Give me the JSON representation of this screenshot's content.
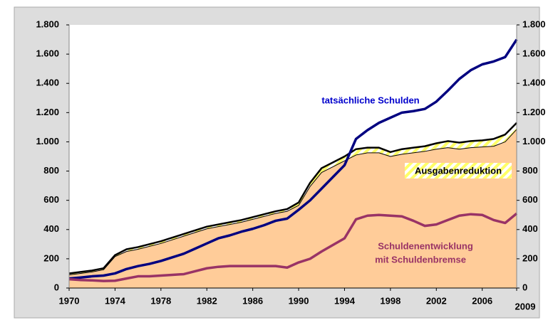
{
  "chart_data": {
    "type": "line",
    "x": [
      1970,
      1971,
      1972,
      1973,
      1974,
      1975,
      1976,
      1977,
      1978,
      1979,
      1980,
      1981,
      1982,
      1983,
      1984,
      1985,
      1986,
      1987,
      1988,
      1989,
      1990,
      1991,
      1992,
      1993,
      1994,
      1995,
      1996,
      1997,
      1998,
      1999,
      2000,
      2001,
      2002,
      2003,
      2004,
      2005,
      2006,
      2007,
      2008,
      2009
    ],
    "series": [
      {
        "color": "#000000",
        "values": [
          100,
          110,
          120,
          135,
          225,
          265,
          280,
          300,
          320,
          345,
          370,
          395,
          420,
          435,
          450,
          465,
          485,
          505,
          525,
          540,
          585,
          720,
          820,
          860,
          900,
          950,
          960,
          960,
          930,
          950,
          960,
          970,
          990,
          1005,
          995,
          1005,
          1010,
          1020,
          1050,
          1130
        ]
      },
      {
        "color": "#000000",
        "values": [
          90,
          100,
          110,
          125,
          215,
          250,
          265,
          285,
          305,
          330,
          355,
          380,
          405,
          420,
          435,
          450,
          470,
          490,
          510,
          525,
          565,
          695,
          790,
          830,
          870,
          910,
          925,
          925,
          900,
          915,
          925,
          935,
          950,
          960,
          950,
          960,
          965,
          970,
          1000,
          1085
        ]
      },
      {
        "color": "#000080",
        "values": [
          65,
          72,
          80,
          85,
          100,
          130,
          150,
          165,
          185,
          210,
          235,
          270,
          305,
          340,
          360,
          385,
          405,
          430,
          460,
          475,
          535,
          600,
          680,
          760,
          840,
          1020,
          1080,
          1130,
          1165,
          1200,
          1210,
          1225,
          1275,
          1350,
          1430,
          1490,
          1530,
          1550,
          1580,
          1700
        ]
      },
      {
        "color": "#993366",
        "values": [
          60,
          55,
          52,
          48,
          50,
          65,
          80,
          80,
          85,
          90,
          95,
          115,
          135,
          145,
          150,
          150,
          150,
          150,
          150,
          140,
          175,
          200,
          250,
          295,
          340,
          470,
          495,
          500,
          495,
          490,
          460,
          425,
          435,
          465,
          495,
          505,
          500,
          465,
          445,
          510
        ]
      }
    ],
    "area_color": "#ffcc99",
    "band_colors": [
      "#ffff66",
      "#ffffff"
    ],
    "annotations": [
      {
        "text": "tatsächliche Schulden",
        "color": "#0000cc"
      },
      {
        "text": "Ausgabenreduktion",
        "color": "#000000"
      },
      {
        "text": "Schuldenentwicklung",
        "color": "#993366"
      },
      {
        "text": "mit Schuldenbremse",
        "color": "#993366"
      }
    ],
    "xlim": [
      1970,
      2009
    ],
    "xticks": [
      1970,
      1974,
      1978,
      1982,
      1986,
      1990,
      1994,
      1998,
      2002,
      2006,
      2009
    ],
    "ylim": [
      0,
      1800
    ],
    "yticks": [
      0,
      200,
      400,
      600,
      800,
      {
        "value": 1000,
        "label": "1.000"
      },
      {
        "value": 1200,
        "label": "1.200"
      },
      {
        "value": 1400,
        "label": "1.400"
      },
      {
        "value": 1600,
        "label": "1.600"
      },
      {
        "value": 1800,
        "label": "1.800"
      }
    ],
    "y2lim": [
      0,
      1800
    ],
    "y2ticks": [
      0,
      200,
      400,
      600,
      800,
      {
        "value": 1000,
        "label": "1.000"
      },
      {
        "value": 1200,
        "label": "1.200"
      },
      {
        "value": 1400,
        "label": "1.400"
      },
      {
        "value": 1600,
        "label": "1.600"
      },
      {
        "value": 1800,
        "label": "1.800"
      }
    ]
  }
}
